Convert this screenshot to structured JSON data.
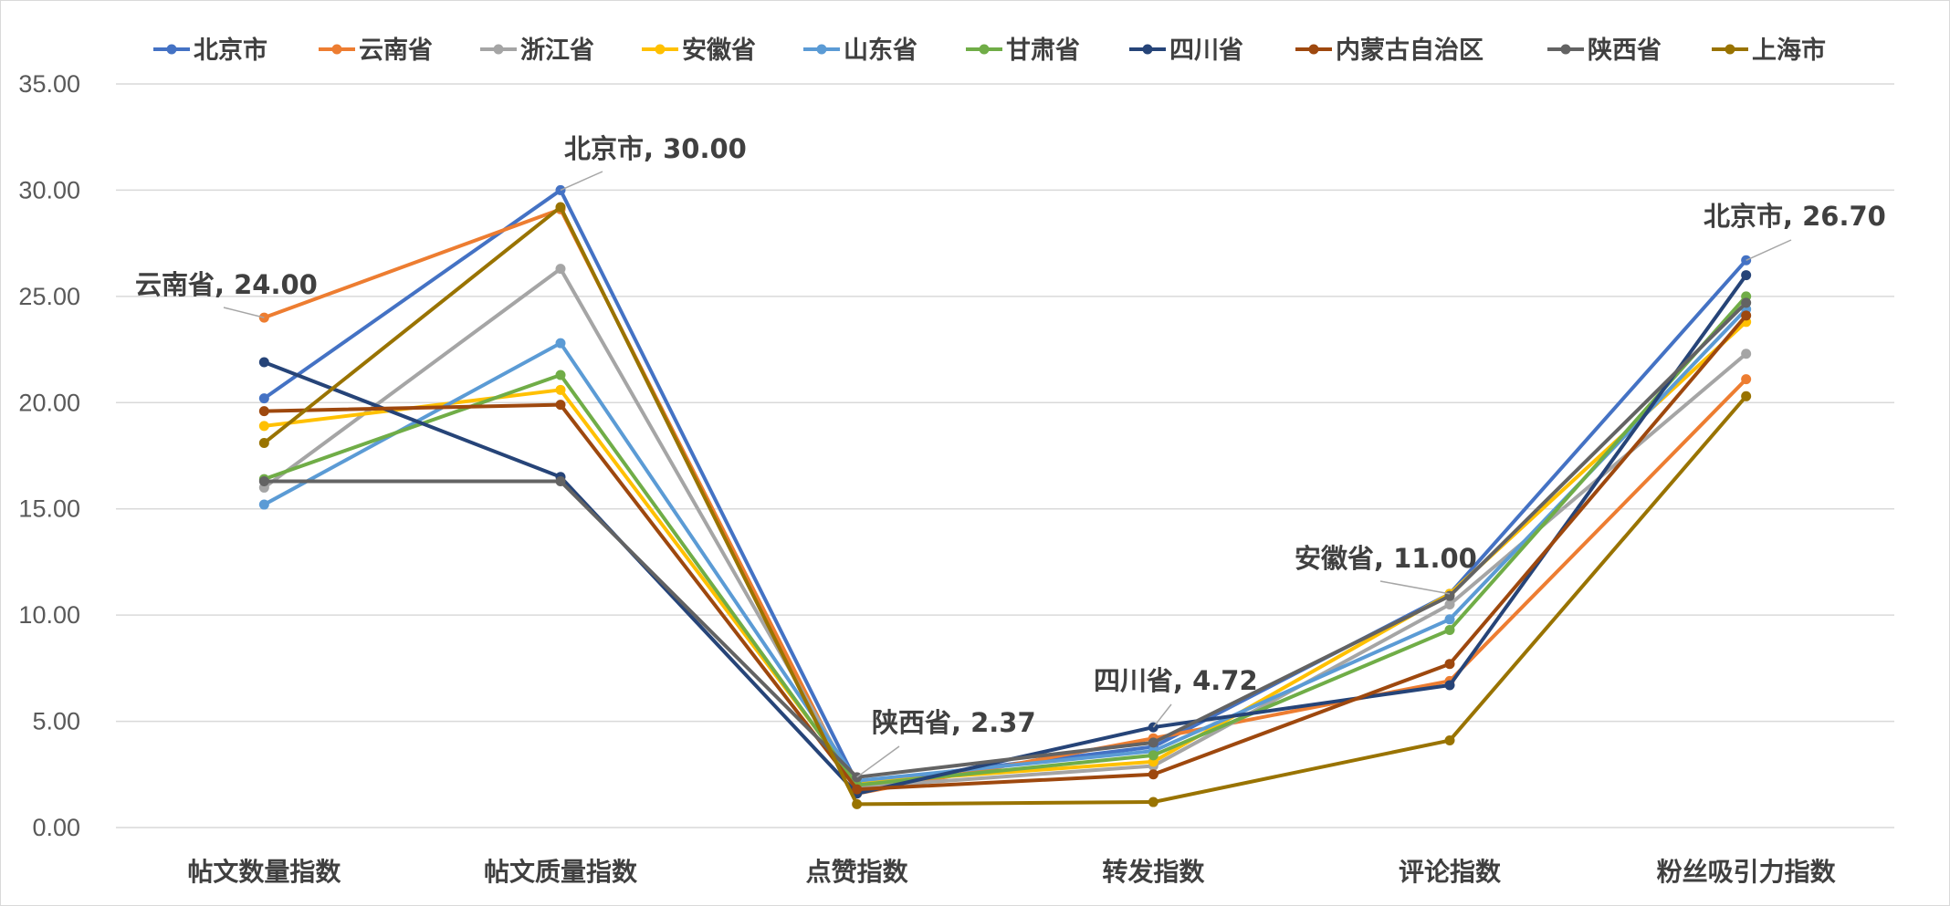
{
  "chart_data": {
    "type": "line",
    "title": "",
    "xlabel": "",
    "ylabel": "",
    "legend_position": "top",
    "grid": true,
    "ylim": [
      0,
      35
    ],
    "y_ticks": [
      "0.00",
      "5.00",
      "10.00",
      "15.00",
      "20.00",
      "25.00",
      "30.00",
      "35.00"
    ],
    "categories": [
      "帖文数量指数",
      "帖文质量指数",
      "点赞指数",
      "转发指数",
      "评论指数",
      "粉丝吸引力指数"
    ],
    "series": [
      {
        "name": "北京市",
        "color": "#4472c4",
        "values": [
          20.2,
          30.0,
          2.1,
          3.8,
          11.0,
          26.7
        ]
      },
      {
        "name": "云南省",
        "color": "#ed7d31",
        "values": [
          24.0,
          29.1,
          1.6,
          4.2,
          6.9,
          21.1
        ]
      },
      {
        "name": "浙江省",
        "color": "#a5a5a5",
        "values": [
          16.0,
          26.3,
          1.9,
          2.9,
          10.5,
          22.3
        ]
      },
      {
        "name": "安徽省",
        "color": "#ffc000",
        "values": [
          18.9,
          20.6,
          2.1,
          3.1,
          11.0,
          23.8
        ]
      },
      {
        "name": "山东省",
        "color": "#5b9bd5",
        "values": [
          15.2,
          22.8,
          2.2,
          3.6,
          9.8,
          24.4
        ]
      },
      {
        "name": "甘肃省",
        "color": "#70ad47",
        "values": [
          16.4,
          21.3,
          2.0,
          3.4,
          9.3,
          25.0
        ]
      },
      {
        "name": "四川省",
        "color": "#264478",
        "values": [
          21.9,
          16.5,
          1.6,
          4.72,
          6.7,
          26.0
        ]
      },
      {
        "name": "内蒙古自治区",
        "color": "#9e480e",
        "values": [
          19.6,
          19.9,
          1.8,
          2.5,
          7.7,
          24.1
        ]
      },
      {
        "name": "陕西省",
        "color": "#636363",
        "values": [
          16.3,
          16.3,
          2.37,
          4.0,
          10.9,
          24.7
        ]
      },
      {
        "name": "上海市",
        "color": "#997300",
        "values": [
          18.1,
          29.2,
          1.1,
          1.2,
          4.1,
          20.3
        ]
      }
    ],
    "annotations": [
      {
        "text": "云南省, 24.00",
        "series": "云南省",
        "category": "帖文数量指数"
      },
      {
        "text": "北京市, 30.00",
        "series": "北京市",
        "category": "帖文质量指数"
      },
      {
        "text": "陕西省, 2.37",
        "series": "陕西省",
        "category": "点赞指数"
      },
      {
        "text": "四川省, 4.72",
        "series": "四川省",
        "category": "转发指数"
      },
      {
        "text": "安徽省, 11.00",
        "series": "安徽省",
        "category": "评论指数"
      },
      {
        "text": "北京市, 26.70",
        "series": "北京市",
        "category": "粉丝吸引力指数"
      }
    ]
  }
}
